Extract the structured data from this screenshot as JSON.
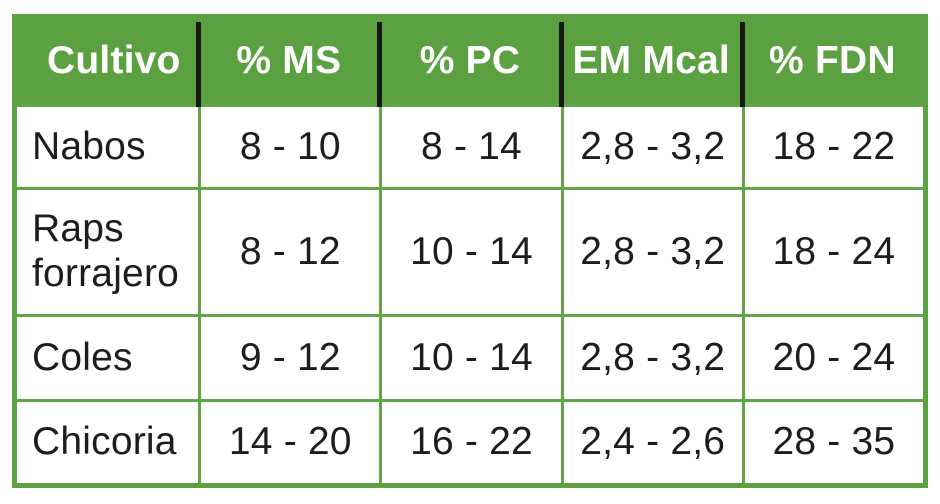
{
  "table": {
    "columns": [
      "Cultivo",
      "% MS",
      "% PC",
      "EM Mcal",
      "% FDN"
    ],
    "rows": [
      [
        "Nabos",
        "8 - 10",
        "8 - 14",
        "2,8 - 3,2",
        "18 - 22"
      ],
      [
        "Raps forrajero",
        "8 - 12",
        "10 - 14",
        "2,8 - 3,2",
        "18 - 24"
      ],
      [
        "Coles",
        "9 - 12",
        "10 - 14",
        "2,8 - 3,2",
        "20 - 24"
      ],
      [
        "Chicoria",
        "14 - 20",
        "16 - 22",
        "2,4 - 2,6",
        "28 - 35"
      ]
    ]
  },
  "chart_data": {
    "type": "table",
    "columns": [
      "Cultivo",
      "% MS",
      "% PC",
      "EM Mcal",
      "% FDN"
    ],
    "rows": [
      {
        "cultivo": "Nabos",
        "ms_pct": "8 - 10",
        "pc_pct": "8 - 14",
        "em_mcal": "2,8 - 3,2",
        "fdn_pct": "18 - 22"
      },
      {
        "cultivo": "Raps forrajero",
        "ms_pct": "8 - 12",
        "pc_pct": "10 - 14",
        "em_mcal": "2,8 - 3,2",
        "fdn_pct": "18 - 24"
      },
      {
        "cultivo": "Coles",
        "ms_pct": "9 - 12",
        "pc_pct": "10 - 14",
        "em_mcal": "2,8 - 3,2",
        "fdn_pct": "20 - 24"
      },
      {
        "cultivo": "Chicoria",
        "ms_pct": "14 - 20",
        "pc_pct": "16 - 22",
        "em_mcal": "2,4 - 2,6",
        "fdn_pct": "28 - 35"
      }
    ],
    "layout": {
      "header_background": "#5ba041",
      "header_text_color": "#ffffff",
      "header_separator_color": "#161616",
      "grid_line_color": "#5fa646",
      "outer_border_color": "#5ba041",
      "body_text_color": "#1d1d1d",
      "page_background": "#ffffff"
    }
  }
}
